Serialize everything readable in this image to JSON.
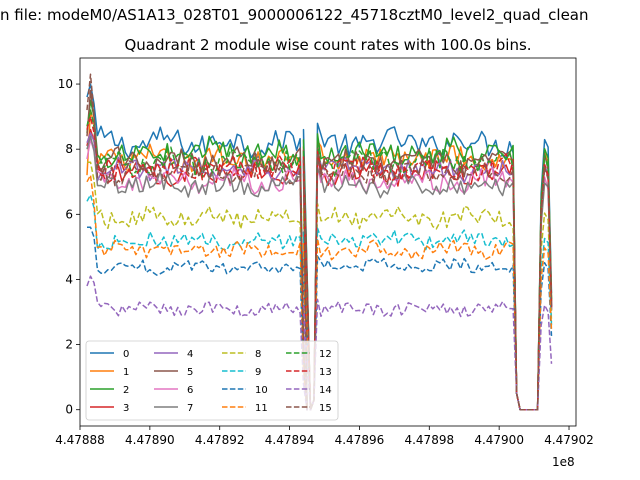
{
  "figure": {
    "suptitle": "n file: modeM0/AS1A13_028T01_9000006122_45718cztM0_level2_quad_clean"
  },
  "chart_data": {
    "type": "line",
    "title": "Quadrant 2 module wise count rates with 100.0s bins.",
    "xlabel": "",
    "ylabel": "",
    "x_offset_label": "1e8",
    "xlim": [
      447888000,
      447902200
    ],
    "ylim": [
      -0.5,
      10.8
    ],
    "x_ticks": [
      447888000,
      447890000,
      447892000,
      447894000,
      447896000,
      447898000,
      447900000,
      447902000
    ],
    "x_tick_labels": [
      "4.47888",
      "4.47890",
      "4.47892",
      "4.47894",
      "4.47896",
      "4.47898",
      "4.47900",
      "4.47902"
    ],
    "y_ticks": [
      0,
      2,
      4,
      6,
      8,
      10
    ],
    "y_tick_labels": [
      "0",
      "2",
      "4",
      "6",
      "8",
      "10"
    ],
    "grid": false,
    "legend": {
      "placement": "lower-left",
      "columns": 4
    },
    "segments": [
      {
        "start": 447888200,
        "end": 447894300,
        "n": 62
      },
      {
        "start": 447894800,
        "end": 447900400,
        "n": 57
      },
      {
        "start": 447901200,
        "end": 447901500,
        "n": 4
      }
    ],
    "gaps": [
      {
        "start": 447894300,
        "end": 447894800,
        "valley_x": [
          447894400,
          447894500,
          447894600,
          447894700
        ]
      },
      {
        "start": 447900400,
        "end": 447901200,
        "valley_x": [
          447900500,
          447900600,
          447900700,
          447900800,
          447900900,
          447901000,
          447901100
        ]
      }
    ],
    "spike_x": 447894400,
    "spike_value": 8.6,
    "series": [
      {
        "name": "0",
        "color": "#1f77b4",
        "dash": "solid",
        "level": 8.2,
        "start_level": 9.6,
        "peak": 10.0,
        "end_level": 3.5
      },
      {
        "name": "1",
        "color": "#ff7f0e",
        "dash": "solid",
        "level": 7.7,
        "start_level": 7.2,
        "peak": 9.2,
        "end_level": 3.3
      },
      {
        "name": "2",
        "color": "#2ca02c",
        "dash": "solid",
        "level": 7.9,
        "start_level": 8.5,
        "peak": 9.5,
        "end_level": 3.4
      },
      {
        "name": "3",
        "color": "#d62728",
        "dash": "solid",
        "level": 7.3,
        "start_level": 8.1,
        "peak": 8.6,
        "end_level": 3.1
      },
      {
        "name": "4",
        "color": "#9467bd",
        "dash": "solid",
        "level": 7.4,
        "start_level": 8.2,
        "peak": 8.5,
        "end_level": 3.2
      },
      {
        "name": "5",
        "color": "#8c564b",
        "dash": "solid",
        "level": 7.6,
        "start_level": 8.4,
        "peak": 9.8,
        "end_level": 3.3
      },
      {
        "name": "6",
        "color": "#e377c2",
        "dash": "solid",
        "level": 7.0,
        "start_level": 7.7,
        "peak": 8.3,
        "end_level": 3.0
      },
      {
        "name": "7",
        "color": "#7f7f7f",
        "dash": "solid",
        "level": 6.9,
        "start_level": 8.0,
        "peak": 8.4,
        "end_level": 3.0
      },
      {
        "name": "8",
        "color": "#bcbd22",
        "dash": "dashed",
        "level": 5.9,
        "start_level": 7.6,
        "peak": 7.6,
        "end_level": 2.7
      },
      {
        "name": "9",
        "color": "#17becf",
        "dash": "dashed",
        "level": 5.2,
        "start_level": 6.4,
        "peak": 6.6,
        "end_level": 2.6
      },
      {
        "name": "10",
        "color": "#1f77b4",
        "dash": "dashed",
        "level": 4.4,
        "start_level": 5.6,
        "peak": 5.6,
        "end_level": 2.3
      },
      {
        "name": "11",
        "color": "#ff7f0e",
        "dash": "dashed",
        "level": 4.9,
        "start_level": 7.0,
        "peak": 7.2,
        "end_level": 2.5
      },
      {
        "name": "12",
        "color": "#2ca02c",
        "dash": "dashed",
        "level": 7.6,
        "start_level": 8.7,
        "peak": 9.2,
        "end_level": 3.2
      },
      {
        "name": "13",
        "color": "#d62728",
        "dash": "dashed",
        "level": 7.4,
        "start_level": 8.6,
        "peak": 9.0,
        "end_level": 3.1
      },
      {
        "name": "14",
        "color": "#9467bd",
        "dash": "dashed",
        "level": 3.1,
        "start_level": 3.8,
        "peak": 4.1,
        "end_level": 1.4
      },
      {
        "name": "15",
        "color": "#8c564b",
        "dash": "dashed",
        "level": 7.3,
        "start_level": 9.2,
        "peak": 10.3,
        "end_level": 3.2
      }
    ]
  }
}
